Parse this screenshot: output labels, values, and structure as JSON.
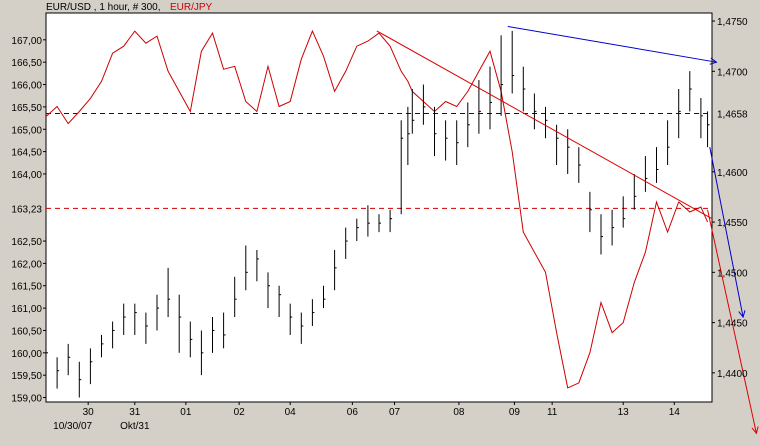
{
  "chart_data": {
    "type": "line",
    "title": "EUR/USD , 1 hour, # 300,",
    "title_secondary": "EUR/JPY",
    "colors": {
      "primary": "#000000",
      "secondary": "#cc0000",
      "trend_red": "#e00000",
      "trend_blue": "#0000cc",
      "background": "#ffffff",
      "frame": "#d4d0c8"
    },
    "left_axis": {
      "label": "",
      "range": [
        158.9,
        167.6
      ],
      "ticks": [
        "167,00",
        "166,50",
        "166,00",
        "165,50",
        "165,00",
        "164,50",
        "164,00",
        "162,50",
        "162,00",
        "161,50",
        "161,00",
        "160,50",
        "160,00",
        "159,50",
        "159,00"
      ],
      "tick_values": [
        167.0,
        166.5,
        166.0,
        165.5,
        165.0,
        164.5,
        164.0,
        162.5,
        162.0,
        161.5,
        161.0,
        160.5,
        160.0,
        159.5,
        159.0
      ],
      "current_label": "163,23",
      "current_value": 163.23
    },
    "right_axis": {
      "label": "",
      "range": [
        1.4371,
        1.4758
      ],
      "ticks": [
        "1,4750",
        "1,4700",
        "1,4600",
        "1,4550",
        "1,4500",
        "1,4450",
        "1,4400"
      ],
      "tick_values": [
        1.475,
        1.47,
        1.46,
        1.455,
        1.45,
        1.445,
        1.44
      ],
      "current_label": "1,4658",
      "current_value": 1.4658
    },
    "x_axis": {
      "range": [
        0,
        300
      ],
      "ticks": [
        {
          "x": 19,
          "label": "30"
        },
        {
          "x": 40,
          "label": "31"
        },
        {
          "x": 63,
          "label": "01"
        },
        {
          "x": 87,
          "label": "02"
        },
        {
          "x": 110,
          "label": "04"
        },
        {
          "x": 138,
          "label": "06"
        },
        {
          "x": 157,
          "label": "07"
        },
        {
          "x": 186,
          "label": "08"
        },
        {
          "x": 211,
          "label": "09"
        },
        {
          "x": 228,
          "label": "11"
        },
        {
          "x": 260,
          "label": "13"
        },
        {
          "x": 283,
          "label": "14"
        }
      ],
      "sublabels": [
        {
          "x": 12,
          "label": "10/30/07"
        },
        {
          "x": 40,
          "label": "Okt/31"
        }
      ]
    },
    "series": [
      {
        "name": "EUR/USD",
        "style": "ohlc-bars",
        "axis": "left",
        "x": [
          0,
          5,
          10,
          15,
          20,
          25,
          30,
          35,
          40,
          45,
          50,
          55,
          60,
          65,
          70,
          75,
          80,
          85,
          90,
          95,
          100,
          105,
          110,
          115,
          120,
          125,
          130,
          135,
          140,
          145,
          150,
          155,
          160,
          163,
          165,
          170,
          175,
          180,
          185,
          190,
          195,
          200,
          205,
          210,
          215,
          220,
          225,
          230,
          235,
          240,
          245,
          250,
          255,
          260,
          265,
          270,
          275,
          280,
          285,
          290,
          295,
          298
        ],
        "values": [
          160.0,
          159.6,
          159.9,
          159.4,
          159.8,
          160.2,
          160.5,
          160.8,
          160.9,
          160.6,
          161.0,
          161.2,
          160.8,
          160.3,
          160.0,
          160.5,
          160.4,
          161.2,
          161.8,
          162.1,
          161.5,
          161.3,
          160.8,
          160.6,
          160.9,
          161.2,
          161.9,
          162.5,
          162.8,
          162.9,
          162.9,
          163.0,
          164.8,
          164.9,
          165.2,
          165.5,
          164.9,
          164.8,
          164.7,
          165.1,
          165.4,
          165.6,
          166.0,
          166.2,
          165.9,
          165.4,
          165.2,
          164.8,
          164.6,
          164.2,
          163.2,
          162.6,
          162.8,
          163.0,
          163.5,
          163.9,
          164.1,
          164.6,
          165.4,
          165.9,
          165.3,
          165.1
        ],
        "high": [
          160.1,
          159.9,
          160.2,
          159.8,
          160.1,
          160.4,
          160.7,
          161.1,
          161.1,
          160.9,
          161.3,
          161.9,
          161.3,
          160.7,
          160.5,
          160.8,
          160.9,
          161.7,
          162.4,
          162.3,
          161.8,
          161.5,
          161.1,
          160.9,
          161.2,
          161.5,
          162.3,
          162.8,
          163.0,
          163.3,
          163.1,
          163.2,
          165.2,
          165.5,
          165.9,
          166.0,
          165.5,
          165.2,
          165.2,
          165.6,
          166.1,
          166.4,
          167.1,
          167.2,
          166.4,
          165.8,
          165.5,
          165.1,
          165.0,
          164.6,
          163.6,
          163.1,
          163.2,
          163.5,
          164.0,
          164.4,
          164.6,
          165.2,
          165.9,
          166.3,
          165.7,
          165.4
        ],
        "low": [
          159.6,
          159.2,
          159.5,
          159.0,
          159.3,
          159.9,
          160.1,
          160.4,
          160.4,
          160.2,
          160.5,
          160.8,
          160.0,
          159.9,
          159.5,
          160.0,
          160.1,
          160.8,
          161.4,
          161.6,
          161.0,
          160.8,
          160.4,
          160.2,
          160.6,
          161.0,
          161.4,
          162.1,
          162.5,
          162.6,
          162.7,
          162.7,
          163.1,
          164.2,
          164.9,
          165.1,
          164.4,
          164.3,
          164.2,
          164.6,
          164.9,
          165.0,
          165.3,
          165.8,
          165.4,
          165.0,
          164.8,
          164.2,
          164.0,
          163.8,
          162.7,
          162.2,
          162.4,
          162.8,
          163.2,
          163.6,
          163.8,
          164.2,
          164.8,
          165.4,
          164.8,
          164.6
        ]
      },
      {
        "name": "EUR/JPY",
        "style": "line",
        "axis": "right",
        "x": [
          0,
          5,
          10,
          15,
          20,
          25,
          30,
          35,
          40,
          45,
          50,
          55,
          60,
          65,
          70,
          75,
          80,
          85,
          90,
          95,
          100,
          105,
          110,
          115,
          120,
          125,
          130,
          135,
          140,
          145,
          150,
          155,
          160,
          163,
          165,
          170,
          175,
          180,
          185,
          190,
          195,
          200,
          205,
          210,
          215,
          220,
          225,
          230,
          235,
          240,
          245,
          250,
          255,
          260,
          265,
          270,
          275,
          280,
          285,
          290,
          295,
          298
        ],
        "values": [
          1.4655,
          1.4665,
          1.4648,
          1.466,
          1.4673,
          1.469,
          1.4718,
          1.4725,
          1.474,
          1.4728,
          1.4735,
          1.47,
          1.468,
          1.466,
          1.472,
          1.4738,
          1.4702,
          1.4705,
          1.467,
          1.466,
          1.4705,
          1.4665,
          1.467,
          1.4712,
          1.474,
          1.4715,
          1.468,
          1.47,
          1.4725,
          1.473,
          1.4738,
          1.4725,
          1.47,
          1.469,
          1.468,
          1.467,
          1.466,
          1.467,
          1.4665,
          1.468,
          1.47,
          1.472,
          1.468,
          1.462,
          1.454,
          1.452,
          1.45,
          1.444,
          1.4385,
          1.439,
          1.442,
          1.447,
          1.444,
          1.445,
          1.449,
          1.452,
          1.457,
          1.454,
          1.457,
          1.456,
          1.4565,
          1.455
        ]
      }
    ],
    "trendlines": [
      {
        "color": "red",
        "from": {
          "x": 149,
          "y": 167.2
        },
        "to": {
          "x": 300,
          "y": 163.0
        }
      },
      {
        "color": "red",
        "from": {
          "x": 298,
          "y": 163.2
        },
        "to": {
          "x": 320,
          "y": 158.2
        }
      },
      {
        "color": "blue",
        "from": {
          "x": 208,
          "y": 167.3
        },
        "to": {
          "x": 302,
          "y": 166.5
        }
      },
      {
        "color": "blue",
        "from": {
          "x": 299,
          "y": 164.6
        },
        "to": {
          "x": 314,
          "y": 160.8
        }
      }
    ],
    "hlines": [
      {
        "color": "blue",
        "axis": "right",
        "value": 1.4658
      },
      {
        "color": "red",
        "axis": "left",
        "value": 163.23
      }
    ],
    "grid": false,
    "legend": "none"
  }
}
